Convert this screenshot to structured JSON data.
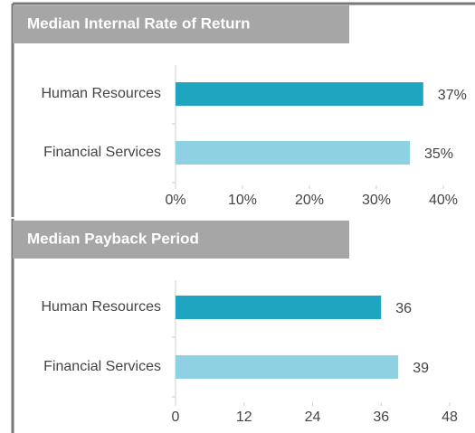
{
  "chart_data": [
    {
      "type": "bar",
      "orientation": "horizontal",
      "title": "Median Internal Rate of Return",
      "categories": [
        "Human Resources",
        "Financial Services"
      ],
      "values": [
        37,
        35
      ],
      "value_labels": [
        "37%",
        "35%"
      ],
      "colors": [
        "#1fa5c0",
        "#8dd1e3"
      ],
      "xlim": [
        0,
        40
      ],
      "xticks": [
        {
          "value": 0,
          "label": "0%"
        },
        {
          "value": 10,
          "label": "10%"
        },
        {
          "value": 20,
          "label": "20%"
        },
        {
          "value": 30,
          "label": "30%"
        },
        {
          "value": 40,
          "label": "40%"
        }
      ]
    },
    {
      "type": "bar",
      "orientation": "horizontal",
      "title": "Median Payback Period",
      "categories": [
        "Human Resources",
        "Financial Services"
      ],
      "values": [
        36,
        39
      ],
      "colors": [
        "#1fa5c0",
        "#8dd1e3"
      ],
      "xlim": [
        0,
        48
      ],
      "xticks": [
        0,
        12,
        24,
        36,
        48
      ]
    }
  ]
}
